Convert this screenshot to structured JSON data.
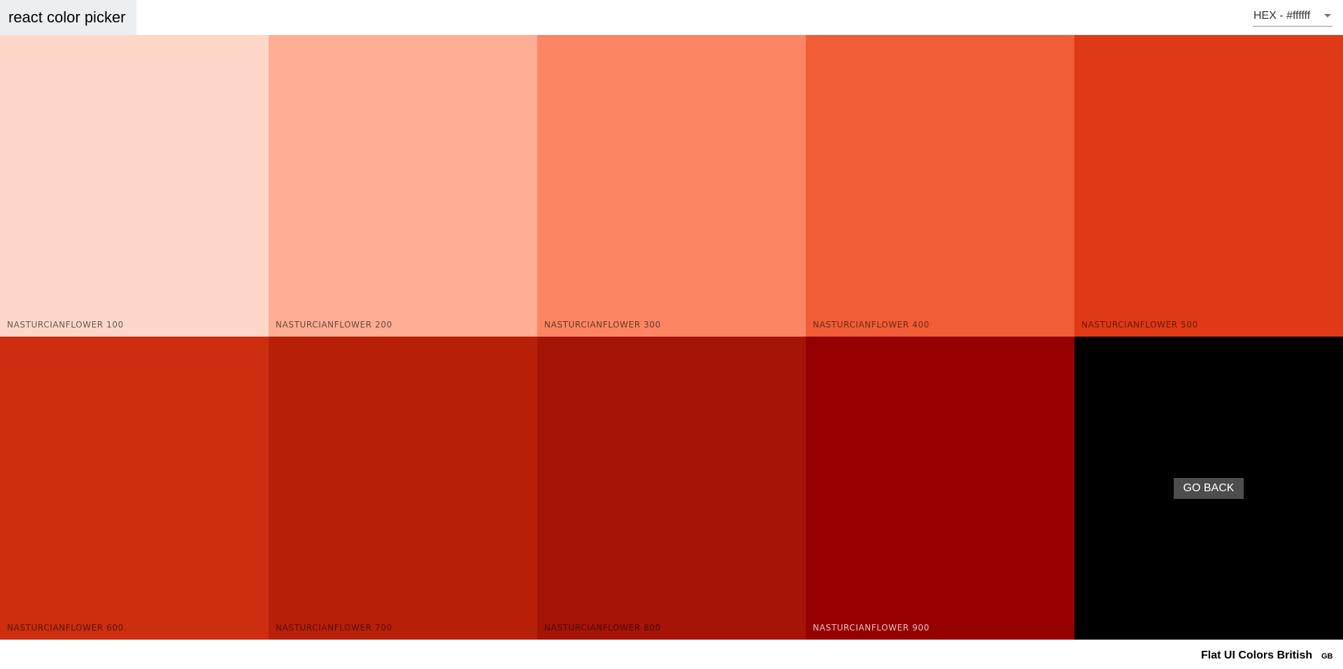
{
  "navbar": {
    "logo": "react color picker",
    "format_select": "HEX - #ffffff"
  },
  "palette": {
    "name": "Flat UI Colors British",
    "emoji": "GB",
    "shades": [
      {
        "name": "NASTURCIANFLOWER 100",
        "color": "#fdd8c9",
        "text": "light"
      },
      {
        "name": "NASTURCIANFLOWER 200",
        "color": "#feae94",
        "text": "light"
      },
      {
        "name": "NASTURCIANFLOWER 300",
        "color": "#fc8664",
        "text": "light"
      },
      {
        "name": "NASTURCIANFLOWER 400",
        "color": "#f05d36",
        "text": "darkish"
      },
      {
        "name": "NASTURCIANFLOWER 500",
        "color": "#df3916",
        "text": "darkish"
      },
      {
        "name": "NASTURCIANFLOWER 600",
        "color": "#cc2e0f",
        "text": "darkish"
      },
      {
        "name": "NASTURCIANFLOWER 700",
        "color": "#b8200a",
        "text": "darkish"
      },
      {
        "name": "NASTURCIANFLOWER 800",
        "color": "#a61407",
        "text": "darkish"
      },
      {
        "name": "NASTURCIANFLOWER 900",
        "color": "#960000",
        "text": "dark"
      }
    ],
    "back_label": "GO BACK"
  }
}
